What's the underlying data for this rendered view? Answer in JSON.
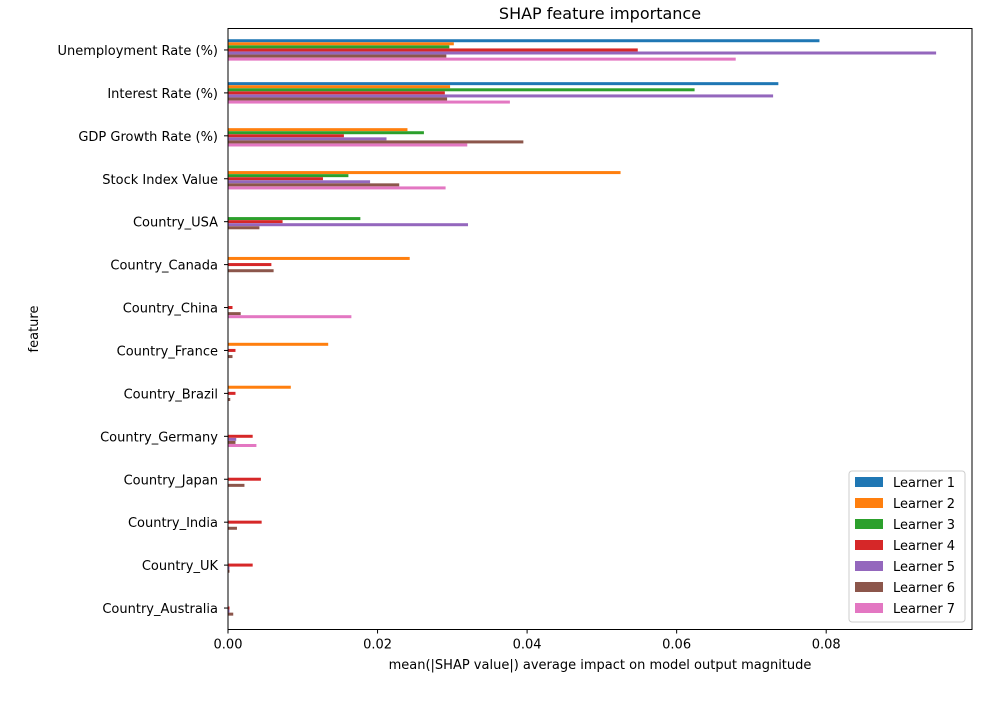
{
  "chart_data": {
    "type": "bar",
    "orientation": "horizontal",
    "title": "SHAP feature importance",
    "xlabel": "mean(|SHAP value|) average impact on model output magnitude",
    "ylabel": "feature",
    "xlim": [
      0,
      0.0995
    ],
    "xticks": [
      0.0,
      0.02,
      0.04,
      0.06,
      0.08
    ],
    "xtick_labels": [
      "0.00",
      "0.02",
      "0.04",
      "0.06",
      "0.08"
    ],
    "grid": false,
    "legend_position": "bottom-right",
    "categories": [
      "Unemployment Rate (%)",
      "Interest Rate (%)",
      "GDP Growth Rate (%)",
      "Stock Index Value",
      "Country_USA",
      "Country_Canada",
      "Country_China",
      "Country_France",
      "Country_Brazil",
      "Country_Germany",
      "Country_Japan",
      "Country_India",
      "Country_UK",
      "Country_Australia"
    ],
    "series": [
      {
        "name": "Learner 1",
        "color": "#1f77b4",
        "values": [
          0.0791,
          0.0736,
          0.0,
          0.0,
          0.0,
          0.0,
          0.0,
          0.0,
          0.0,
          0.0,
          0.0,
          0.0,
          0.0,
          0.0
        ]
      },
      {
        "name": "Learner 2",
        "color": "#ff7f0e",
        "values": [
          0.0302,
          0.0297,
          0.024,
          0.0525,
          0.0,
          0.0243,
          0.0,
          0.0134,
          0.0084,
          0.0,
          0.0,
          0.0,
          0.0,
          0.0
        ]
      },
      {
        "name": "Learner 3",
        "color": "#2ca02c",
        "values": [
          0.0296,
          0.0624,
          0.0262,
          0.0161,
          0.0177,
          0.0,
          0.0,
          0.0,
          0.0,
          0.0,
          0.0,
          0.0,
          0.0,
          0.0
        ]
      },
      {
        "name": "Learner 4",
        "color": "#d62728",
        "values": [
          0.0548,
          0.029,
          0.0155,
          0.0127,
          0.0073,
          0.0058,
          0.0006,
          0.001,
          0.001,
          0.0033,
          0.0044,
          0.0045,
          0.0033,
          0.0002
        ]
      },
      {
        "name": "Learner 5",
        "color": "#9467bd",
        "values": [
          0.0947,
          0.0729,
          0.0212,
          0.019,
          0.0321,
          0.0,
          0.0,
          0.0,
          0.0,
          0.0011,
          0.0,
          0.0,
          0.0002,
          0.0002
        ]
      },
      {
        "name": "Learner 6",
        "color": "#8c564b",
        "values": [
          0.0292,
          0.0293,
          0.0395,
          0.0229,
          0.0042,
          0.0061,
          0.0017,
          0.0006,
          0.0003,
          0.001,
          0.0022,
          0.0012,
          0.0002,
          0.0007
        ]
      },
      {
        "name": "Learner 7",
        "color": "#e377c2",
        "values": [
          0.0679,
          0.0377,
          0.032,
          0.0291,
          0.0,
          0.0,
          0.0165,
          0.0,
          0.0,
          0.0038,
          0.0,
          0.0,
          0.0,
          0.0
        ]
      }
    ]
  }
}
